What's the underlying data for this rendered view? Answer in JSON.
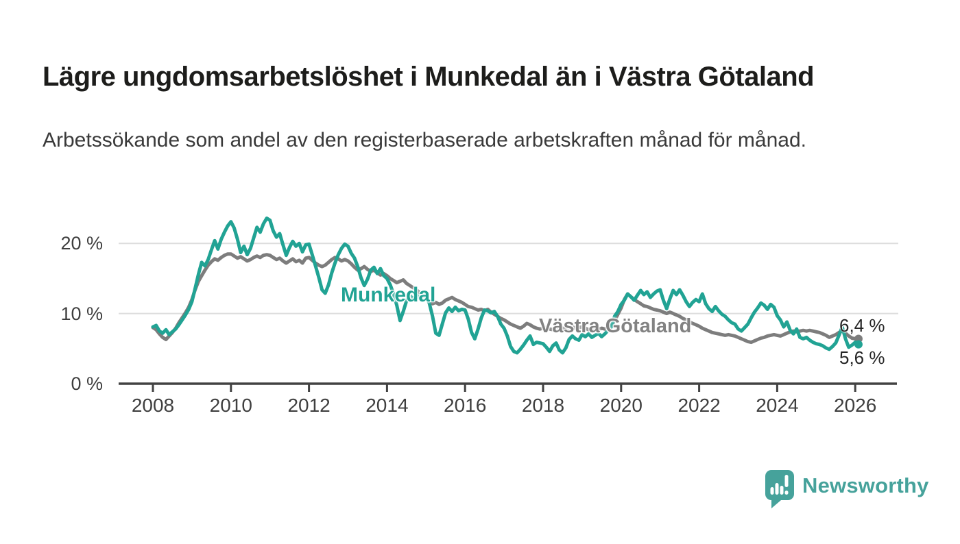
{
  "header": {
    "title": "Lägre ungdomsarbetslöshet i Munkedal än i Västra Götaland",
    "subtitle": "Arbetssökande som andel av den registerbaserade arbetskraften månad för månad."
  },
  "chart_data": {
    "type": "line",
    "title": "Lägre ungdomsarbetslöshet i Munkedal än i Västra Götaland",
    "subtitle": "Arbetssökande som andel av den registerbaserade arbetskraften månad för månad.",
    "x_start_year": 2008,
    "points_per_year": 12,
    "x_tick_years": [
      2008,
      2010,
      2012,
      2014,
      2016,
      2018,
      2020,
      2022,
      2024,
      2026
    ],
    "x_tick_labels": [
      "2008",
      "2010",
      "2012",
      "2014",
      "2016",
      "2018",
      "2020",
      "2022",
      "2024",
      "2026"
    ],
    "y_ticks": [
      0,
      10,
      20
    ],
    "y_tick_labels": [
      "0 %",
      "10 %",
      "20 %"
    ],
    "ylim": [
      0,
      25
    ],
    "grid": "horizontal",
    "legend_position": "inline-labels",
    "colors": {
      "munkedal": "#21a394",
      "vastra_gotaland": "#7d7d7d",
      "gridline": "#dddddd",
      "axis": "#424242"
    },
    "series": [
      {
        "name": "Munkedal",
        "color": "#21a394",
        "end_label": "5,6 %",
        "end_value": 5.6,
        "values": [
          8.1,
          8.3,
          7.5,
          7.2,
          7.7,
          7.0,
          7.4,
          7.8,
          8.4,
          9.1,
          9.8,
          10.6,
          11.7,
          13.6,
          15.6,
          17.3,
          16.8,
          17.7,
          19.1,
          20.4,
          19.2,
          20.6,
          21.6,
          22.5,
          23.1,
          22.2,
          20.6,
          18.7,
          19.6,
          18.4,
          19.3,
          20.8,
          22.3,
          21.6,
          22.8,
          23.6,
          23.3,
          21.8,
          20.9,
          21.4,
          19.8,
          18.3,
          19.4,
          20.3,
          19.6,
          20.0,
          18.8,
          19.8,
          19.9,
          18.4,
          16.8,
          15.2,
          13.4,
          12.9,
          14.1,
          15.8,
          17.2,
          18.4,
          19.3,
          19.9,
          19.6,
          18.6,
          17.9,
          16.7,
          15.1,
          14.0,
          14.9,
          16.2,
          16.6,
          15.7,
          16.4,
          15.4,
          15.0,
          14.1,
          12.8,
          11.2,
          9.0,
          10.3,
          11.8,
          12.6,
          12.1,
          12.7,
          12.2,
          12.9,
          12.4,
          11.5,
          9.6,
          7.2,
          6.9,
          8.5,
          10.1,
          10.8,
          10.3,
          10.9,
          10.4,
          10.6,
          10.5,
          9.2,
          7.3,
          6.4,
          7.8,
          9.4,
          10.5,
          10.4,
          10.1,
          10.3,
          9.6,
          8.5,
          7.9,
          6.8,
          5.3,
          4.6,
          4.4,
          4.9,
          5.5,
          6.2,
          6.8,
          5.6,
          5.9,
          5.8,
          5.7,
          5.2,
          4.6,
          5.4,
          5.8,
          4.8,
          4.4,
          5.1,
          6.3,
          6.8,
          6.4,
          6.2,
          7.0,
          6.7,
          7.1,
          6.6,
          6.9,
          7.2,
          6.7,
          7.1,
          7.6,
          8.1,
          9.6,
          10.3,
          11.3,
          11.9,
          12.8,
          12.4,
          11.9,
          12.6,
          13.3,
          12.7,
          13.1,
          12.3,
          12.8,
          13.2,
          13.4,
          11.9,
          10.7,
          12.1,
          13.3,
          12.7,
          13.4,
          12.6,
          11.7,
          11.0,
          11.6,
          12.0,
          11.7,
          12.8,
          11.4,
          10.7,
          10.3,
          11.0,
          10.4,
          9.9,
          9.6,
          9.1,
          8.7,
          8.5,
          7.8,
          7.5,
          8.0,
          8.5,
          9.4,
          10.2,
          10.8,
          11.5,
          11.2,
          10.6,
          11.3,
          10.9,
          9.7,
          9.1,
          8.1,
          8.8,
          7.6,
          7.1,
          7.8,
          6.6,
          6.4,
          6.6,
          6.2,
          5.9,
          5.7,
          5.6,
          5.4,
          5.1,
          4.9,
          5.3,
          5.8,
          6.9,
          8.1,
          6.4,
          5.2,
          5.5,
          5.9,
          5.6
        ]
      },
      {
        "name": "Västra Götaland",
        "color": "#7d7d7d",
        "end_label": "6,4 %",
        "end_value": 6.4,
        "values": [
          8.0,
          7.7,
          7.1,
          6.6,
          6.3,
          6.8,
          7.3,
          7.9,
          8.7,
          9.4,
          10.1,
          10.9,
          12.0,
          13.4,
          14.6,
          15.4,
          16.2,
          16.9,
          17.4,
          17.8,
          17.6,
          18.0,
          18.3,
          18.5,
          18.5,
          18.2,
          17.9,
          18.1,
          17.8,
          17.5,
          17.7,
          18.0,
          18.2,
          18.0,
          18.3,
          18.4,
          18.3,
          18.0,
          17.7,
          17.9,
          17.5,
          17.2,
          17.5,
          17.8,
          17.4,
          17.6,
          17.2,
          17.9,
          18.0,
          17.6,
          17.2,
          16.9,
          16.7,
          16.9,
          17.3,
          17.7,
          18.0,
          17.8,
          17.5,
          17.7,
          17.5,
          17.1,
          16.6,
          16.2,
          16.4,
          16.7,
          16.3,
          16.0,
          16.2,
          15.8,
          15.5,
          15.7,
          15.4,
          15.0,
          14.7,
          14.4,
          14.6,
          14.8,
          14.3,
          14.0,
          13.7,
          13.4,
          13.0,
          12.6,
          12.2,
          11.8,
          11.4,
          11.6,
          11.3,
          11.5,
          11.9,
          12.1,
          12.3,
          12.0,
          11.8,
          11.6,
          11.3,
          11.0,
          10.9,
          10.7,
          10.5,
          10.6,
          10.4,
          10.6,
          10.2,
          9.9,
          9.6,
          9.3,
          9.1,
          8.8,
          8.5,
          8.3,
          8.1,
          7.9,
          8.2,
          8.6,
          8.4,
          8.1,
          7.9,
          7.8,
          7.9,
          8.0,
          7.8,
          7.7,
          7.9,
          8.1,
          7.9,
          7.8,
          8.0,
          8.1,
          7.9,
          8.0,
          8.1,
          7.9,
          7.7,
          7.6,
          7.8,
          7.7,
          7.9,
          7.8,
          8.0,
          8.3,
          9.0,
          9.9,
          10.8,
          12.0,
          12.8,
          12.4,
          12.0,
          11.7,
          11.4,
          11.1,
          11.0,
          10.8,
          10.6,
          10.5,
          10.4,
          10.2,
          10.0,
          10.2,
          10.0,
          9.8,
          9.6,
          9.3,
          9.1,
          8.8,
          8.6,
          8.4,
          8.2,
          7.9,
          7.7,
          7.5,
          7.3,
          7.2,
          7.1,
          7.0,
          6.9,
          7.0,
          6.9,
          6.8,
          6.6,
          6.4,
          6.2,
          6.0,
          5.9,
          6.1,
          6.3,
          6.5,
          6.6,
          6.8,
          6.9,
          7.0,
          6.9,
          6.8,
          7.0,
          7.2,
          7.4,
          7.5,
          7.4,
          7.5,
          7.6,
          7.5,
          7.6,
          7.5,
          7.4,
          7.3,
          7.1,
          6.9,
          6.6,
          6.8,
          7.0,
          7.3,
          7.5,
          7.2,
          6.8,
          6.5,
          6.4,
          6.4
        ]
      }
    ]
  },
  "footer": {
    "brand": "Newsworthy"
  }
}
